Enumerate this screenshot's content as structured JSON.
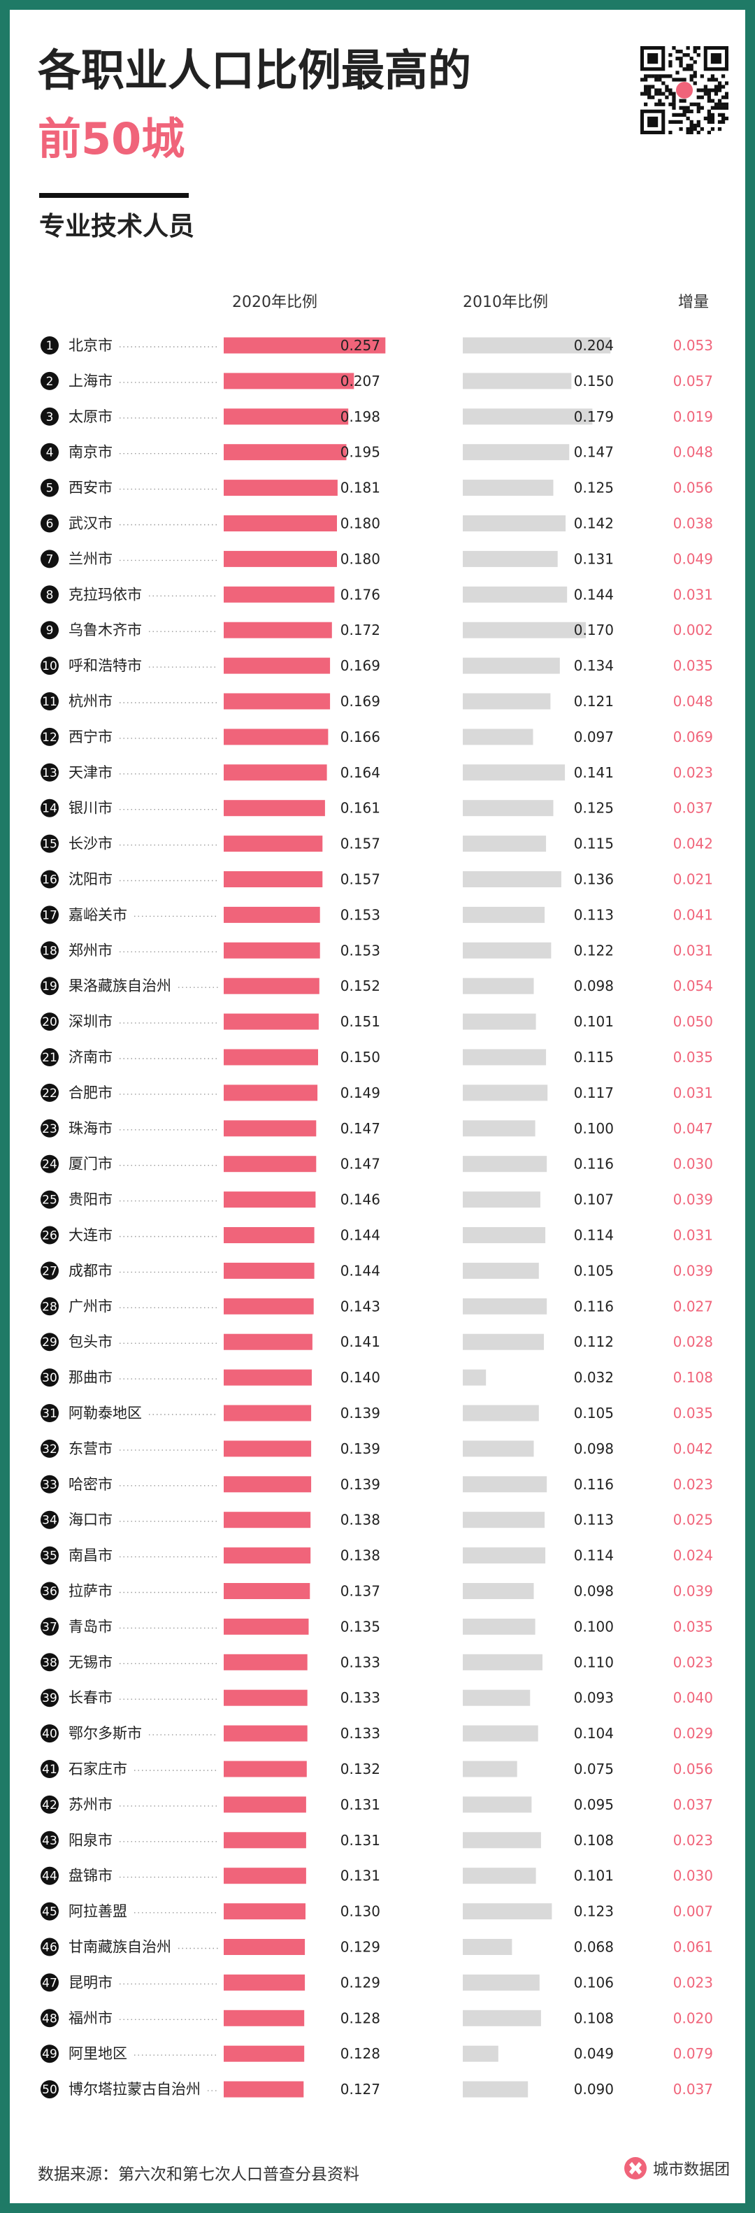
{
  "header": {
    "title_line1": "各职业人口比例最高的",
    "title_line2": "前50城",
    "subtitle": "专业技术人员"
  },
  "colors": {
    "accent": "#f0647a",
    "bar_2010": "#d9d9d9",
    "background": "#1f7a66"
  },
  "qr_icon": "qr-code-icon",
  "chart_data": {
    "type": "bar",
    "columns": [
      "2020年比例",
      "2010年比例",
      "增量"
    ],
    "series": [
      {
        "name": "2020年比例",
        "values": [
          0.257,
          0.207,
          0.198,
          0.195,
          0.181,
          0.18,
          0.18,
          0.176,
          0.172,
          0.169,
          0.169,
          0.166,
          0.164,
          0.161,
          0.157,
          0.157,
          0.153,
          0.153,
          0.152,
          0.151,
          0.15,
          0.149,
          0.147,
          0.147,
          0.146,
          0.144,
          0.144,
          0.143,
          0.141,
          0.14,
          0.139,
          0.139,
          0.139,
          0.138,
          0.138,
          0.137,
          0.135,
          0.133,
          0.133,
          0.133,
          0.132,
          0.131,
          0.131,
          0.131,
          0.13,
          0.129,
          0.129,
          0.128,
          0.128,
          0.127
        ]
      },
      {
        "name": "2010年比例",
        "values": [
          0.204,
          0.15,
          0.179,
          0.147,
          0.125,
          0.142,
          0.131,
          0.144,
          0.17,
          0.134,
          0.121,
          0.097,
          0.141,
          0.125,
          0.115,
          0.136,
          0.113,
          0.122,
          0.098,
          0.101,
          0.115,
          0.117,
          0.1,
          0.116,
          0.107,
          0.114,
          0.105,
          0.116,
          0.112,
          0.032,
          0.105,
          0.098,
          0.116,
          0.113,
          0.114,
          0.098,
          0.1,
          0.11,
          0.093,
          0.104,
          0.075,
          0.095,
          0.108,
          0.101,
          0.123,
          0.068,
          0.106,
          0.108,
          0.049,
          0.09
        ]
      },
      {
        "name": "增量",
        "values": [
          0.053,
          0.057,
          0.019,
          0.048,
          0.056,
          0.038,
          0.049,
          0.031,
          0.002,
          0.035,
          0.048,
          0.069,
          0.023,
          0.037,
          0.042,
          0.021,
          0.041,
          0.031,
          0.054,
          0.05,
          0.035,
          0.031,
          0.047,
          0.03,
          0.039,
          0.031,
          0.039,
          0.027,
          0.028,
          0.108,
          0.035,
          0.042,
          0.023,
          0.025,
          0.024,
          0.039,
          0.035,
          0.023,
          0.04,
          0.029,
          0.056,
          0.037,
          0.023,
          0.03,
          0.007,
          0.061,
          0.023,
          0.02,
          0.079,
          0.037
        ]
      }
    ],
    "ranks": [
      "1",
      "2",
      "3",
      "4",
      "5",
      "6",
      "7",
      "8",
      "9",
      "10",
      "11",
      "12",
      "13",
      "14",
      "15",
      "16",
      "17",
      "18",
      "19",
      "20",
      "21",
      "22",
      "23",
      "24",
      "25",
      "26",
      "27",
      "28",
      "29",
      "30",
      "31",
      "32",
      "33",
      "34",
      "35",
      "36",
      "37",
      "38",
      "39",
      "40",
      "41",
      "42",
      "43",
      "44",
      "45",
      "46",
      "47",
      "48",
      "49",
      "50"
    ],
    "categories": [
      "北京市",
      "上海市",
      "太原市",
      "南京市",
      "西安市",
      "武汉市",
      "兰州市",
      "克拉玛依市",
      "乌鲁木齐市",
      "呼和浩特市",
      "杭州市",
      "西宁市",
      "天津市",
      "银川市",
      "长沙市",
      "沈阳市",
      "嘉峪关市",
      "郑州市",
      "果洛藏族自治州",
      "深圳市",
      "济南市",
      "合肥市",
      "珠海市",
      "厦门市",
      "贵阳市",
      "大连市",
      "成都市",
      "广州市",
      "包头市",
      "那曲市",
      "阿勒泰地区",
      "东营市",
      "哈密市",
      "海口市",
      "南昌市",
      "拉萨市",
      "青岛市",
      "无锡市",
      "长春市",
      "鄂尔多斯市",
      "石家庄市",
      "苏州市",
      "阳泉市",
      "盘锦市",
      "阿拉善盟",
      "甘南藏族自治州",
      "昆明市",
      "福州市",
      "阿里地区",
      "博尔塔拉蒙古自治州"
    ],
    "labels_2020": [
      "0.257",
      "0.207",
      "0.198",
      "0.195",
      "0.181",
      "0.180",
      "0.180",
      "0.176",
      "0.172",
      "0.169",
      "0.169",
      "0.166",
      "0.164",
      "0.161",
      "0.157",
      "0.157",
      "0.153",
      "0.153",
      "0.152",
      "0.151",
      "0.150",
      "0.149",
      "0.147",
      "0.147",
      "0.146",
      "0.144",
      "0.144",
      "0.143",
      "0.141",
      "0.140",
      "0.139",
      "0.139",
      "0.139",
      "0.138",
      "0.138",
      "0.137",
      "0.135",
      "0.133",
      "0.133",
      "0.133",
      "0.132",
      "0.131",
      "0.131",
      "0.131",
      "0.130",
      "0.129",
      "0.129",
      "0.128",
      "0.128",
      "0.127"
    ],
    "labels_2010": [
      "0.204",
      "0.150",
      "0.179",
      "0.147",
      "0.125",
      "0.142",
      "0.131",
      "0.144",
      "0.170",
      "0.134",
      "0.121",
      "0.097",
      "0.141",
      "0.125",
      "0.115",
      "0.136",
      "0.113",
      "0.122",
      "0.098",
      "0.101",
      "0.115",
      "0.117",
      "0.100",
      "0.116",
      "0.107",
      "0.114",
      "0.105",
      "0.116",
      "0.112",
      "0.032",
      "0.105",
      "0.098",
      "0.116",
      "0.113",
      "0.114",
      "0.098",
      "0.100",
      "0.110",
      "0.093",
      "0.104",
      "0.075",
      "0.095",
      "0.108",
      "0.101",
      "0.123",
      "0.068",
      "0.106",
      "0.108",
      "0.049",
      "0.090"
    ],
    "labels_inc": [
      "0.053",
      "0.057",
      "0.019",
      "0.048",
      "0.056",
      "0.038",
      "0.049",
      "0.031",
      "0.002",
      "0.035",
      "0.048",
      "0.069",
      "0.023",
      "0.037",
      "0.042",
      "0.021",
      "0.041",
      "0.031",
      "0.054",
      "0.050",
      "0.035",
      "0.031",
      "0.047",
      "0.030",
      "0.039",
      "0.031",
      "0.039",
      "0.027",
      "0.028",
      "0.108",
      "0.035",
      "0.042",
      "0.023",
      "0.025",
      "0.024",
      "0.039",
      "0.035",
      "0.023",
      "0.040",
      "0.029",
      "0.056",
      "0.037",
      "0.023",
      "0.030",
      "0.007",
      "0.061",
      "0.023",
      "0.020",
      "0.079",
      "0.037"
    ],
    "grid": false,
    "legend": "none"
  },
  "footer": {
    "source": "数据来源：第六次和第七次人口普查分县资料",
    "brand_name": "城市数据团",
    "brand_icon": "brand-logo-icon"
  }
}
